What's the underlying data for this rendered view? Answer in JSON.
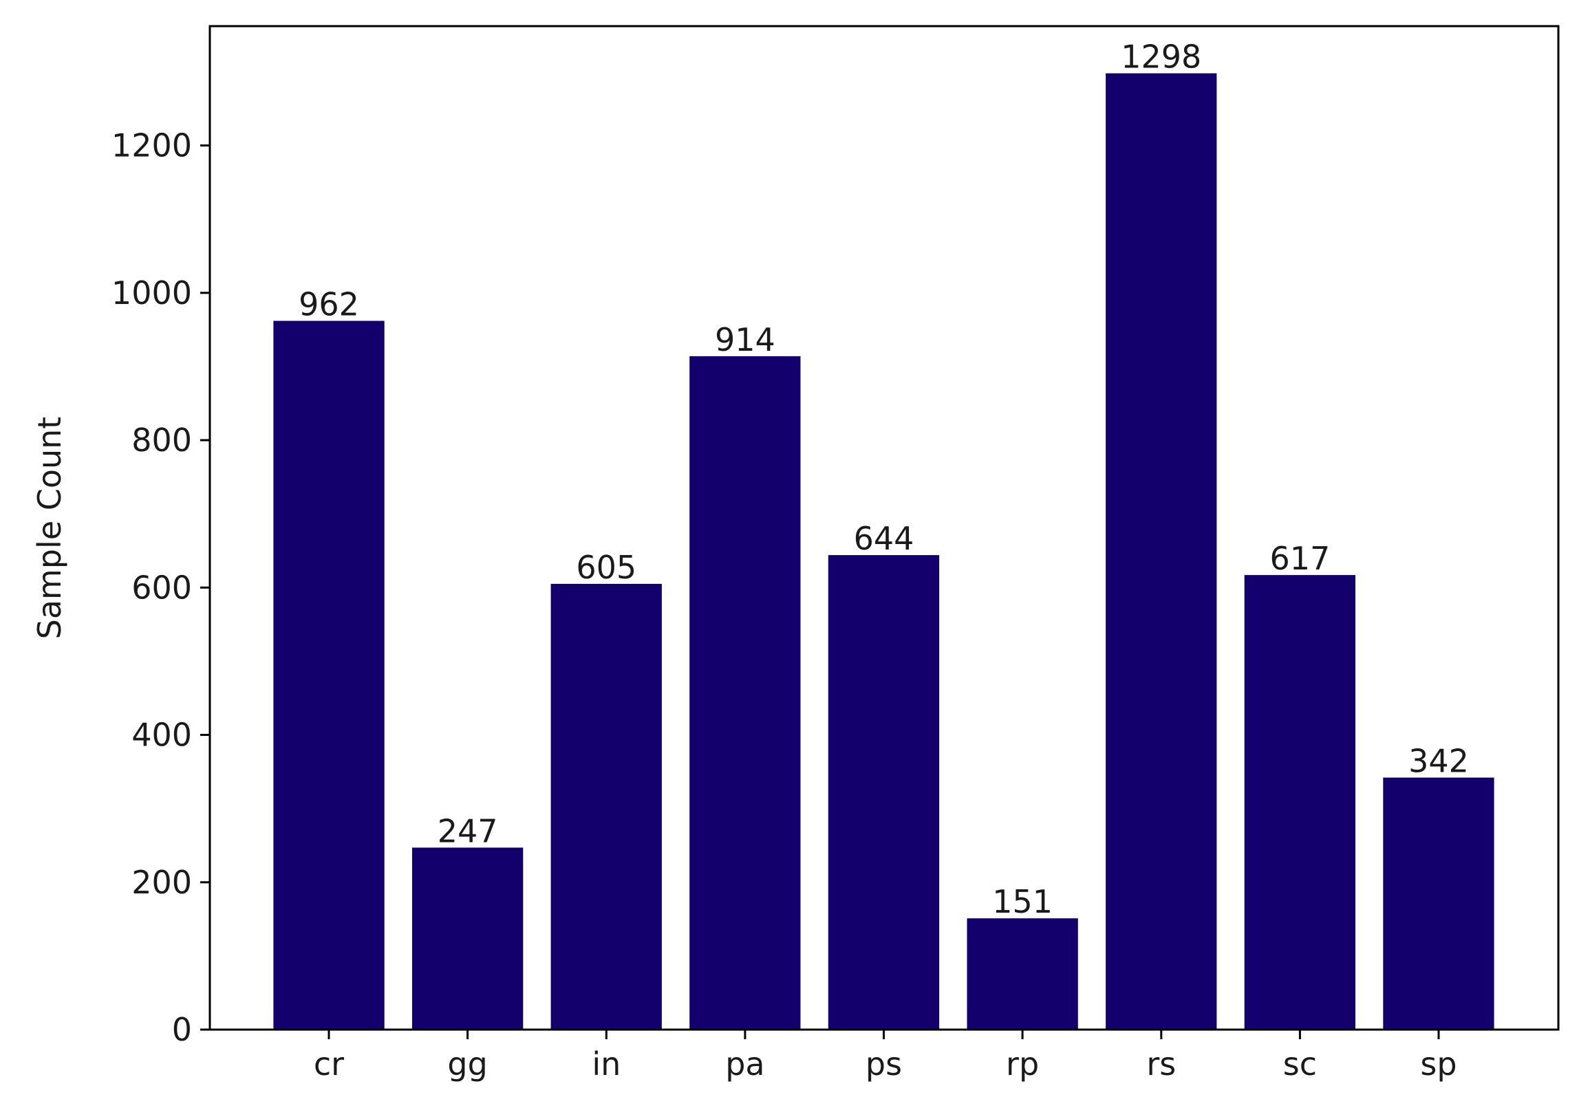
{
  "chart_data": {
    "type": "bar",
    "categories": [
      "cr",
      "gg",
      "in",
      "pa",
      "ps",
      "rp",
      "rs",
      "sc",
      "sp"
    ],
    "values": [
      962,
      247,
      605,
      914,
      644,
      151,
      1298,
      617,
      342
    ],
    "data_labels": [
      "962",
      "247",
      "605",
      "914",
      "644",
      "151",
      "1298",
      "617",
      "342"
    ],
    "title": "",
    "xlabel": "",
    "ylabel": "Sample Count",
    "ylim": [
      0,
      1362
    ],
    "yticks": [
      0,
      200,
      400,
      600,
      800,
      1000,
      1200
    ],
    "ytick_labels": [
      "0",
      "200",
      "400",
      "600",
      "800",
      "1000",
      "1200"
    ],
    "bar_color": "#13006c",
    "grid": false,
    "legend": "none"
  }
}
